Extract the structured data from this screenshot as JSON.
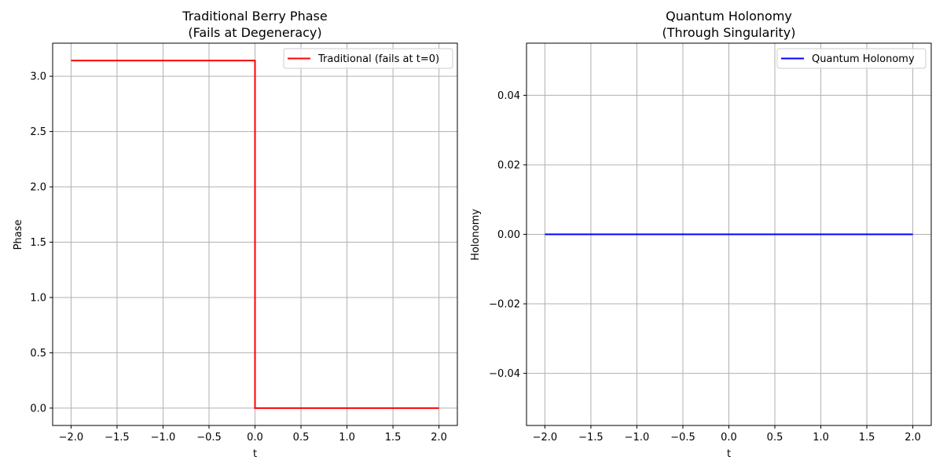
{
  "chart_data": [
    {
      "type": "line",
      "title": "Traditional Berry Phase",
      "subtitle": "(Fails at Degeneracy)",
      "xlabel": "t",
      "ylabel": "Phase",
      "xlim": [
        -2.2,
        2.2
      ],
      "ylim": [
        -0.157,
        3.299
      ],
      "xticks": [
        -2.0,
        -1.5,
        -1.0,
        -0.5,
        0.0,
        0.5,
        1.0,
        1.5,
        2.0
      ],
      "xtick_labels": [
        "−2.0",
        "−1.5",
        "−1.0",
        "−0.5",
        "0.0",
        "0.5",
        "1.0",
        "1.5",
        "2.0"
      ],
      "yticks": [
        0.0,
        0.5,
        1.0,
        1.5,
        2.0,
        2.5,
        3.0
      ],
      "ytick_labels": [
        "0.0",
        "0.5",
        "1.0",
        "1.5",
        "2.0",
        "2.5",
        "3.0"
      ],
      "grid": true,
      "legend_position": "top-right",
      "series": [
        {
          "name": "Traditional (fails at t=0)",
          "color": "#ff0000",
          "x": [
            -2.0,
            0.0,
            0.0,
            2.0
          ],
          "y": [
            3.14159,
            3.14159,
            0.0,
            0.0
          ]
        }
      ]
    },
    {
      "type": "line",
      "title": "Quantum Holonomy",
      "subtitle": "(Through Singularity)",
      "xlabel": "t",
      "ylabel": "Holonomy",
      "xlim": [
        -2.2,
        2.2
      ],
      "ylim": [
        -0.055,
        0.055
      ],
      "xticks": [
        -2.0,
        -1.5,
        -1.0,
        -0.5,
        0.0,
        0.5,
        1.0,
        1.5,
        2.0
      ],
      "xtick_labels": [
        "−2.0",
        "−1.5",
        "−1.0",
        "−0.5",
        "0.0",
        "0.5",
        "1.0",
        "1.5",
        "2.0"
      ],
      "yticks": [
        -0.04,
        -0.02,
        0.0,
        0.02,
        0.04
      ],
      "ytick_labels": [
        "−0.04",
        "−0.02",
        "0.00",
        "0.02",
        "0.04"
      ],
      "grid": true,
      "legend_position": "top-right",
      "series": [
        {
          "name": "Quantum Holonomy",
          "color": "#0000ff",
          "x": [
            -2.0,
            2.0
          ],
          "y": [
            0.0,
            0.0
          ]
        }
      ]
    }
  ]
}
